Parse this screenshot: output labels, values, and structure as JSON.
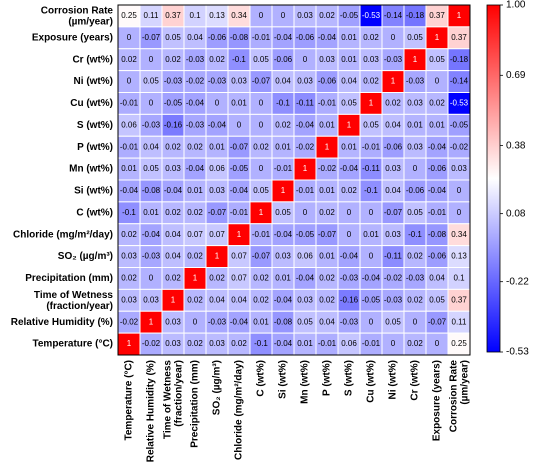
{
  "chart_data": {
    "type": "heatmap",
    "x_categories": [
      "Temperature (°C)",
      "Relative Humidity (%)",
      "Time of Wetness\n(fraction/year)",
      "Precipitation (mm)",
      "SO₂ (µg/m³)",
      "Chloride (mg/m²/day)",
      "C (wt%)",
      "Si (wt%)",
      "Mn (wt%)",
      "P (wt%)",
      "S (wt%)",
      "Cu (wt%)",
      "Ni (wt%)",
      "Cr (wt%)",
      "Exposure (years)",
      "Corrosion Rate\n(µm/year)"
    ],
    "y_categories": [
      "Corrosion Rate\n(µm/year)",
      "Exposure (years)",
      "Cr (wt%)",
      "Ni (wt%)",
      "Cu (wt%)",
      "S (wt%)",
      "P (wt%)",
      "Mn (wt%)",
      "Si (wt%)",
      "C (wt%)",
      "Chloride (mg/m²/day)",
      "SO₂ (µg/m³)",
      "Precipitation (mm)",
      "Time of Wetness\n(fraction/year)",
      "Relative Humidity (%)",
      "Temperature (°C)"
    ],
    "values": [
      [
        0.25,
        0.11,
        0.37,
        0.1,
        0.13,
        0.34,
        0,
        0,
        0.03,
        0.02,
        -0.05,
        -0.53,
        -0.14,
        -0.18,
        0.37,
        1
      ],
      [
        0,
        -0.07,
        0.05,
        0.04,
        -0.06,
        -0.08,
        -0.01,
        -0.04,
        -0.06,
        -0.04,
        0.01,
        0.02,
        0,
        0.05,
        1,
        0.37
      ],
      [
        0.02,
        0,
        0.02,
        -0.03,
        0.02,
        -0.1,
        0.05,
        -0.06,
        0,
        0.03,
        0.01,
        0.03,
        -0.03,
        1,
        0.05,
        -0.18
      ],
      [
        0,
        0.05,
        -0.03,
        -0.02,
        -0.03,
        0.03,
        -0.07,
        0.04,
        0.03,
        -0.06,
        0.04,
        0.02,
        1,
        -0.03,
        0,
        -0.14
      ],
      [
        -0.01,
        0,
        -0.05,
        -0.04,
        0,
        0.01,
        0,
        -0.1,
        -0.11,
        -0.01,
        0.05,
        1,
        0.02,
        0.03,
        0.02,
        -0.53
      ],
      [
        0.06,
        -0.03,
        -0.16,
        -0.03,
        -0.04,
        0,
        0,
        0.02,
        -0.04,
        0.01,
        1,
        0.05,
        0.04,
        0.01,
        0.01,
        -0.05
      ],
      [
        -0.01,
        0.04,
        0.02,
        0.02,
        0.01,
        -0.07,
        0.02,
        0.01,
        -0.02,
        1,
        0.01,
        -0.01,
        -0.06,
        0.03,
        -0.04,
        -0.02
      ],
      [
        0.01,
        0.05,
        0.03,
        -0.04,
        0.06,
        -0.05,
        0,
        -0.01,
        1,
        -0.02,
        -0.04,
        -0.11,
        0.03,
        0,
        -0.06,
        0.03
      ],
      [
        -0.04,
        -0.08,
        -0.04,
        0.01,
        0.03,
        -0.04,
        0.05,
        1,
        -0.01,
        0.01,
        0.02,
        -0.1,
        0.04,
        -0.06,
        -0.04,
        0
      ],
      [
        -0.1,
        0.01,
        0.02,
        0.02,
        -0.07,
        -0.01,
        1,
        0.05,
        0,
        0.02,
        0,
        0,
        -0.07,
        0.05,
        -0.01,
        0
      ],
      [
        0.02,
        -0.04,
        0.04,
        0.07,
        0.07,
        1,
        -0.01,
        -0.04,
        -0.05,
        -0.07,
        0,
        0.01,
        0.03,
        -0.1,
        -0.08,
        0.34
      ],
      [
        0.03,
        -0.03,
        0.04,
        0.02,
        1,
        0.07,
        -0.07,
        0.03,
        0.06,
        0.01,
        -0.04,
        0,
        -0.11,
        0.02,
        -0.06,
        0.13
      ],
      [
        0.02,
        0,
        0.02,
        1,
        0.02,
        0.07,
        0.02,
        0.01,
        -0.04,
        0.02,
        -0.03,
        -0.04,
        -0.02,
        -0.03,
        0.04,
        0.1
      ],
      [
        0.03,
        0.03,
        1,
        0.02,
        0.04,
        0.04,
        0.02,
        -0.04,
        0.03,
        0.02,
        -0.16,
        -0.05,
        -0.03,
        0.02,
        0.05,
        0.37
      ],
      [
        -0.02,
        1,
        0.03,
        0,
        -0.03,
        -0.04,
        0.01,
        -0.08,
        0.05,
        0.04,
        -0.03,
        0,
        0.05,
        0,
        -0.07,
        0.11
      ],
      [
        1,
        -0.02,
        0.03,
        0.02,
        0.03,
        0.02,
        -0.1,
        -0.04,
        0.01,
        -0.01,
        0.06,
        -0.01,
        0,
        0.02,
        0,
        0.25
      ]
    ],
    "colors": [
      "#0000ff",
      "#ffffff",
      "#ff0000"
    ],
    "colorbar_lim": [
      -0.53,
      1
    ],
    "colorbar_ticks": [
      {
        "value": 1,
        "label": "1.00"
      },
      0.69,
      0.38,
      0.08,
      -0.22,
      -0.53
    ]
  }
}
